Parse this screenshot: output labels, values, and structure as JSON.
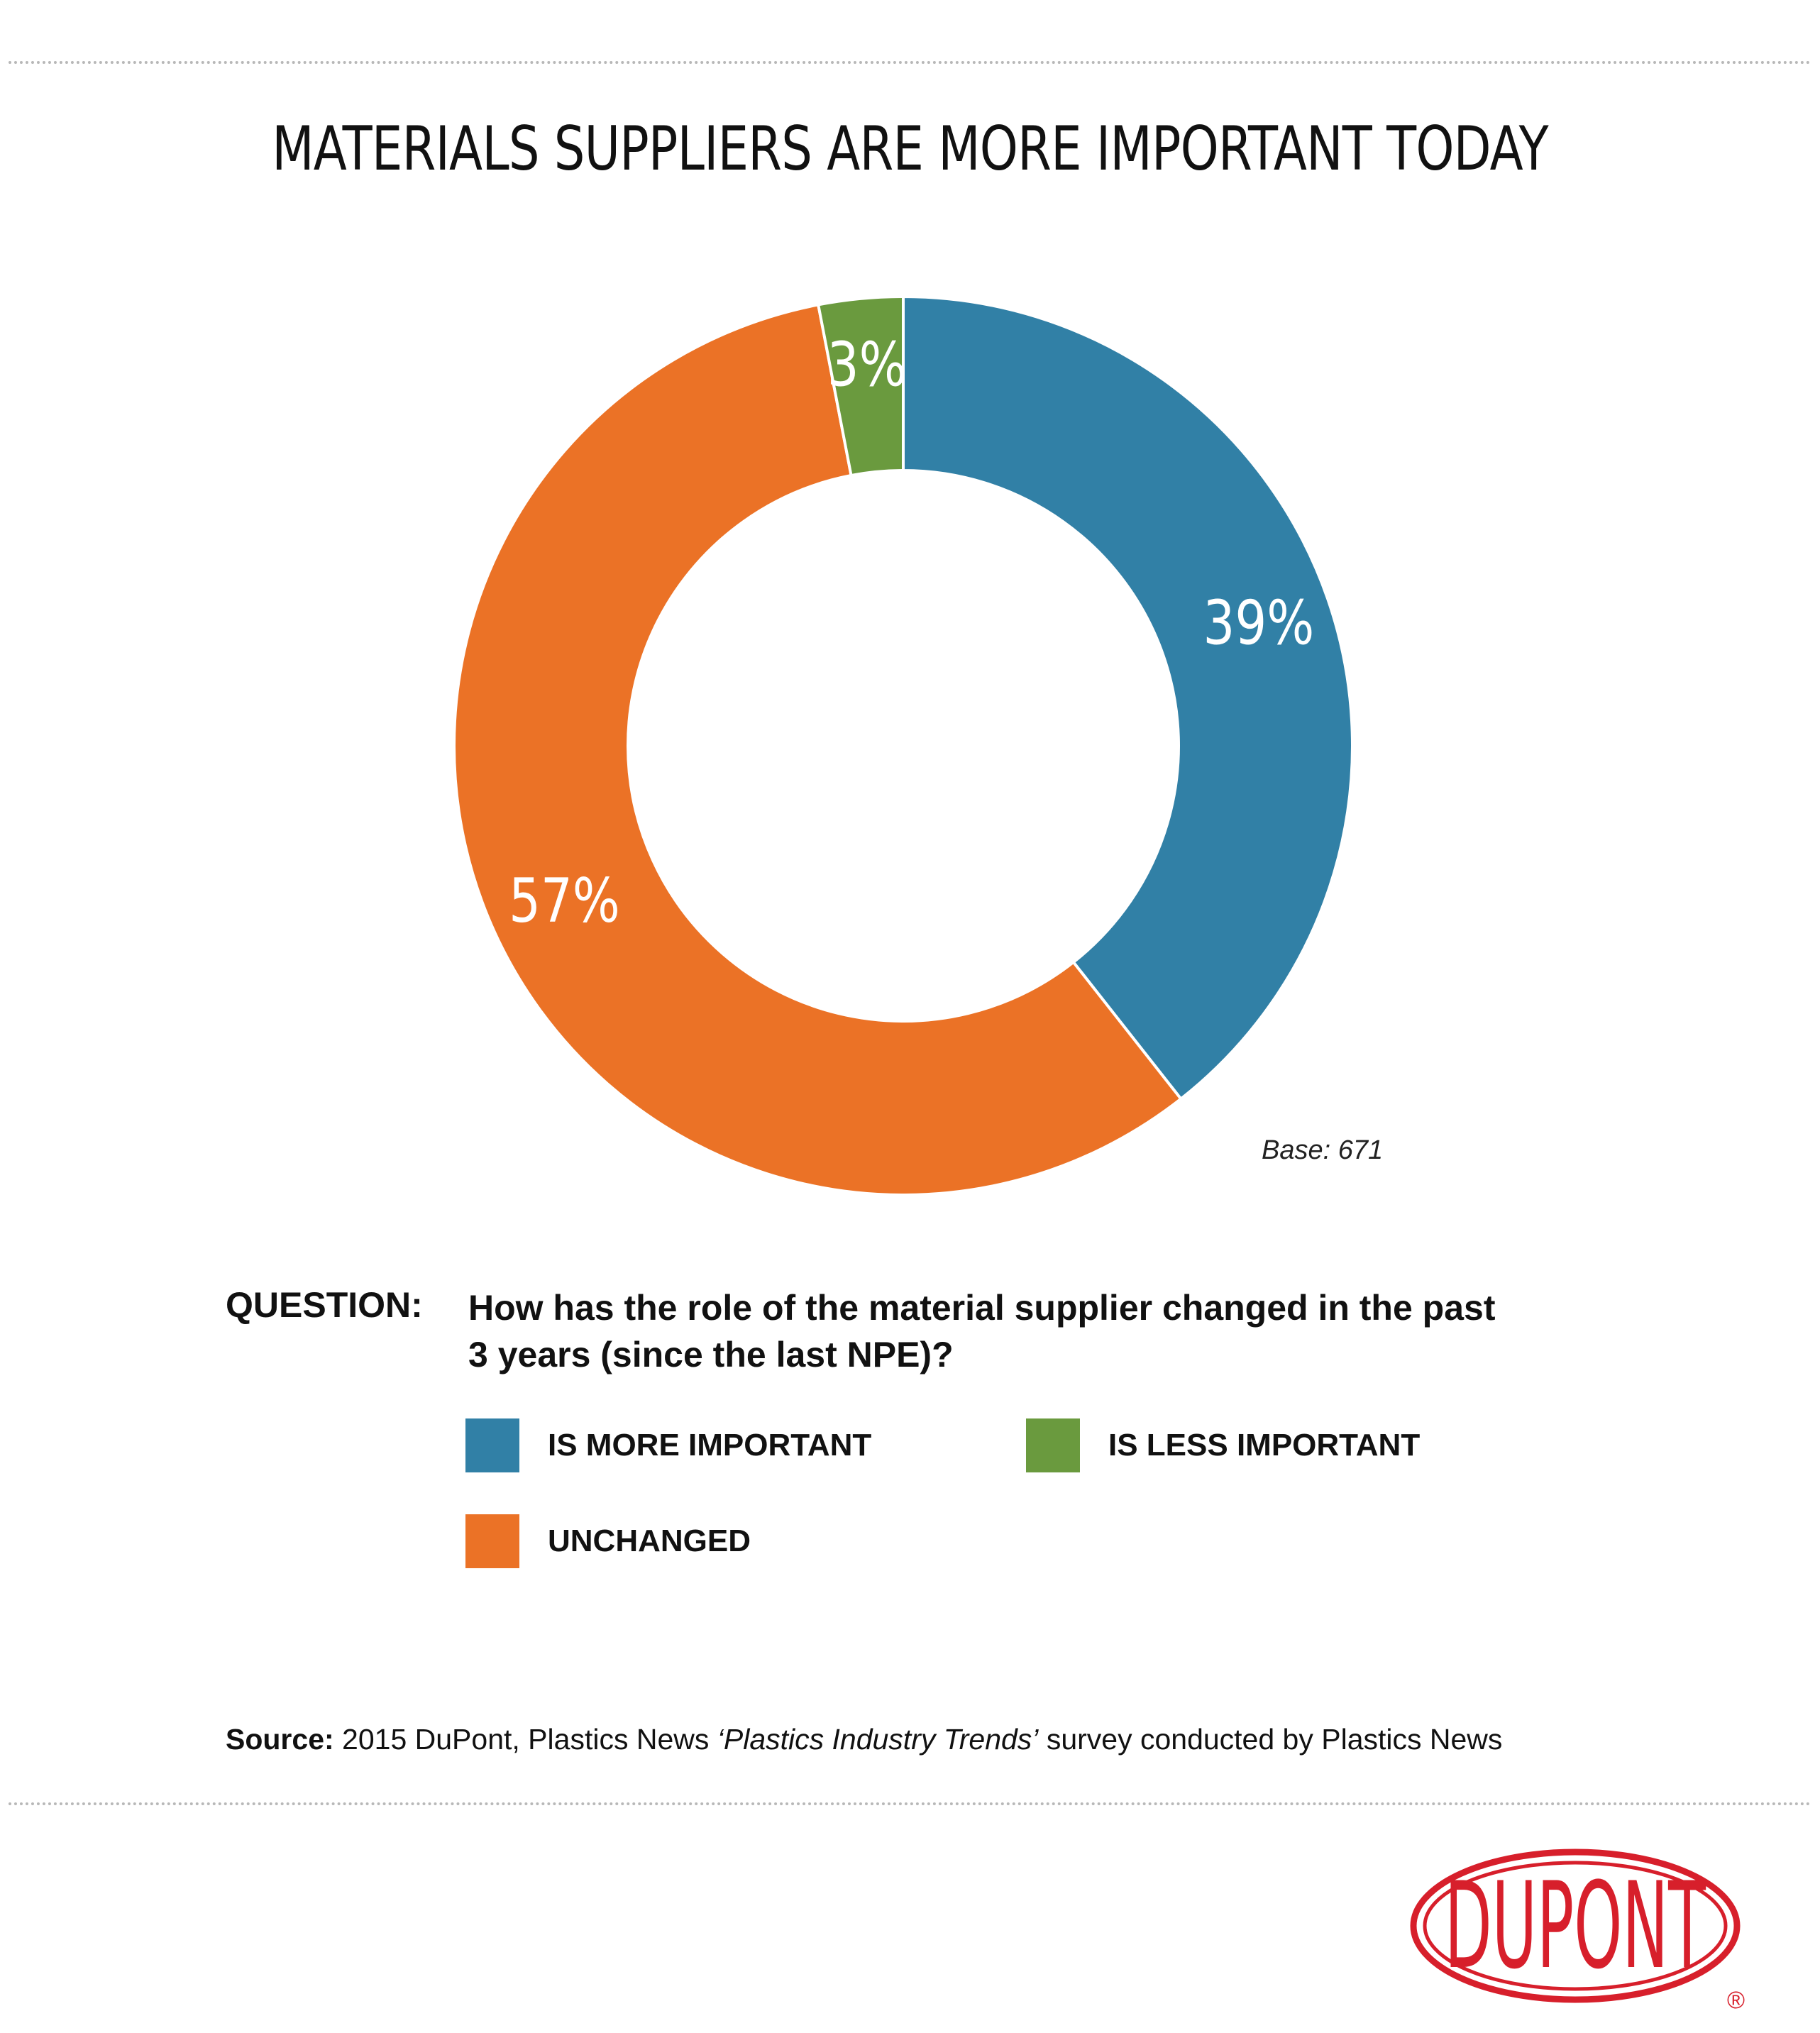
{
  "chart_data": {
    "type": "pie",
    "title": "MATERIALS SUPPLIERS ARE MORE IMPORTANT TODAY",
    "categories": [
      "IS MORE IMPORTANT",
      "UNCHANGED",
      "IS LESS IMPORTANT"
    ],
    "values": [
      39,
      57,
      3
    ],
    "value_labels": [
      "39%",
      "57%",
      "3%"
    ],
    "colors": [
      "#3180a6",
      "#eb7226",
      "#6a9a3e"
    ],
    "donut": true,
    "legend_position": "bottom"
  },
  "base_note": "Base: 671",
  "question": {
    "label": "QUESTION:",
    "text": "How has the role of the material supplier changed in the past 3 years (since the last NPE)?"
  },
  "legend": [
    {
      "label": "IS MORE IMPORTANT",
      "color": "#3180a6"
    },
    {
      "label": "IS LESS IMPORTANT",
      "color": "#6a9a3e"
    },
    {
      "label": "UNCHANGED",
      "color": "#eb7226"
    }
  ],
  "source": {
    "label": "Source:",
    "text_before": " 2015 DuPont, Plastics News ",
    "title": "‘Plastics Industry Trends’",
    "text_after": " survey conducted by Plastics News"
  },
  "logo": {
    "text": "DUPONT",
    "registered": "®",
    "color": "#d71f2b"
  }
}
